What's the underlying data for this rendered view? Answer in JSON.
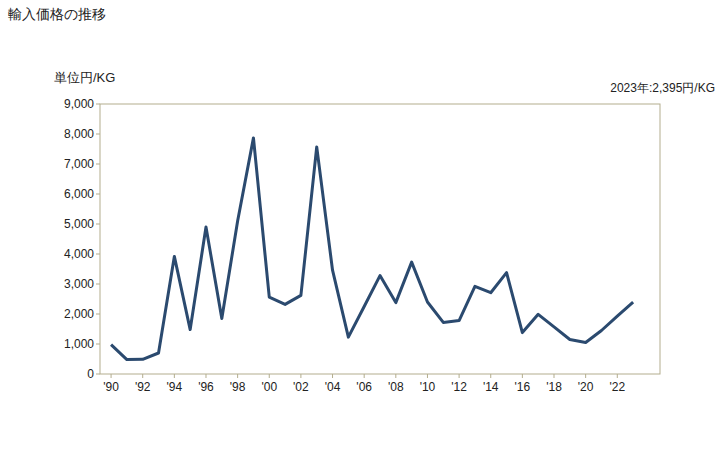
{
  "chart_data": {
    "type": "line",
    "title": "輸入価格の推移",
    "y_label": "単位円/KG",
    "annotations": [
      {
        "text": "2023年:2,395円/KG"
      }
    ],
    "x": [
      1990,
      1991,
      1992,
      1993,
      1994,
      1995,
      1996,
      1997,
      1998,
      1999,
      2000,
      2001,
      2002,
      2003,
      2004,
      2005,
      2006,
      2007,
      2008,
      2009,
      2010,
      2011,
      2012,
      2013,
      2014,
      2015,
      2016,
      2017,
      2018,
      2019,
      2020,
      2021,
      2022,
      2023
    ],
    "values": [
      980,
      480,
      490,
      700,
      3920,
      1480,
      4900,
      1850,
      5100,
      7870,
      2560,
      2320,
      2620,
      7570,
      3460,
      1230,
      2250,
      3280,
      2380,
      3730,
      2400,
      1720,
      1780,
      2920,
      2710,
      3380,
      1380,
      1990,
      1570,
      1150,
      1050,
      1450,
      1930,
      2395
    ],
    "color": "#2b4a6f",
    "xlim": [
      1989.3,
      2024.7
    ],
    "xticks": [
      {
        "value": 1990,
        "label": "'90"
      },
      {
        "value": 1992,
        "label": "'92"
      },
      {
        "value": 1994,
        "label": "'94"
      },
      {
        "value": 1996,
        "label": "'96"
      },
      {
        "value": 1998,
        "label": "'98"
      },
      {
        "value": 2000,
        "label": "'00"
      },
      {
        "value": 2002,
        "label": "'02"
      },
      {
        "value": 2004,
        "label": "'04"
      },
      {
        "value": 2006,
        "label": "'06"
      },
      {
        "value": 2008,
        "label": "'08"
      },
      {
        "value": 2010,
        "label": "'10"
      },
      {
        "value": 2012,
        "label": "'12"
      },
      {
        "value": 2014,
        "label": "'14"
      },
      {
        "value": 2016,
        "label": "'16"
      },
      {
        "value": 2018,
        "label": "'18"
      },
      {
        "value": 2020,
        "label": "'20"
      },
      {
        "value": 2022,
        "label": "'22"
      }
    ],
    "ylim": [
      0,
      9000
    ],
    "yticks": [
      0,
      {
        "value": 1000,
        "label": "1,000"
      },
      {
        "value": 2000,
        "label": "2,000"
      },
      {
        "value": 3000,
        "label": "3,000"
      },
      {
        "value": 4000,
        "label": "4,000"
      },
      {
        "value": 5000,
        "label": "5,000"
      },
      {
        "value": 6000,
        "label": "6,000"
      },
      {
        "value": 7000,
        "label": "7,000"
      },
      {
        "value": 8000,
        "label": "8,000"
      },
      {
        "value": 9000,
        "label": "9,000"
      }
    ],
    "grid": false
  }
}
